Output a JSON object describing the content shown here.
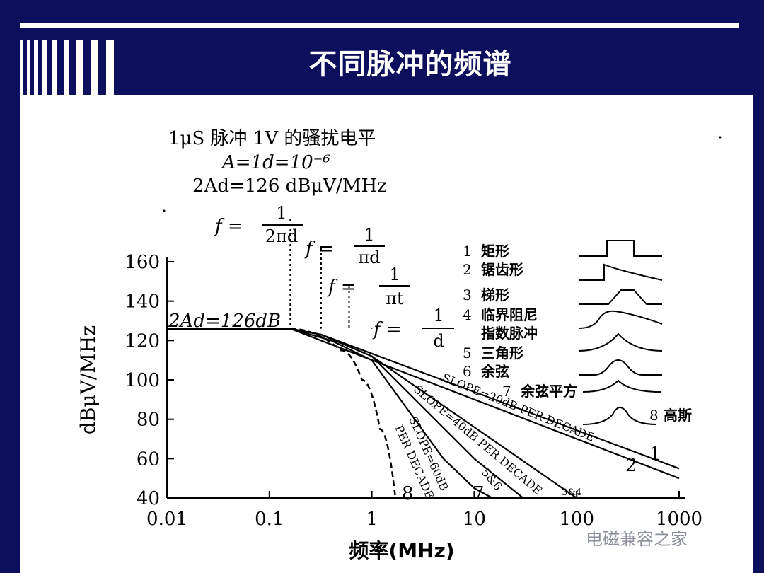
{
  "slide": {
    "title": "不同脉冲的频谱"
  },
  "figure": {
    "heading": "1μS 脉冲  1V 的骚扰电平",
    "eq1": "A=1d=10⁻⁶",
    "eq2": "2Ad=126 dBμV/MHz",
    "corner_labels": [
      {
        "lhs": "f =",
        "num": "1",
        "den": "2πd"
      },
      {
        "lhs": "f =",
        "num": "1",
        "den": "πd"
      },
      {
        "lhs": "f =",
        "num": "1",
        "den": "πt"
      },
      {
        "lhs": "f =",
        "num": "1",
        "den": "d"
      }
    ],
    "plateau_label": "2Ad=126dB",
    "slope_labels": [
      "SLOPE=20dB PER DECADE",
      "SLOPE=40dB PER DECADE",
      "SLOPE=60dB",
      "PER DECADE"
    ],
    "curve_number_labels": [
      "1",
      "2",
      "3&4",
      "5&6",
      "7",
      "8"
    ]
  },
  "legend": {
    "items": [
      {
        "num": "1",
        "label": "矩形"
      },
      {
        "num": "2",
        "label": "锯齿形"
      },
      {
        "num": "3",
        "label": "梯形"
      },
      {
        "num": "4",
        "label": "临界阻尼"
      },
      {
        "num": "",
        "label": "指数脉冲"
      },
      {
        "num": "5",
        "label": "三角形"
      },
      {
        "num": "6",
        "label": "余弦"
      },
      {
        "num": "7",
        "label": "余弦平方"
      },
      {
        "num": "8",
        "label": "高斯"
      }
    ]
  },
  "chart_data": {
    "type": "line",
    "xlabel": "频率(MHz)",
    "ylabel": "dBμV/MHz",
    "xscale": "log",
    "xlim": [
      0.01,
      1000
    ],
    "ylim": [
      40,
      160
    ],
    "xticks": [
      0.01,
      0.1,
      1,
      10,
      100,
      1000
    ],
    "xtick_labels": [
      "0.01",
      "0.1",
      "1",
      "10",
      "100",
      "1000"
    ],
    "yticks": [
      40,
      60,
      80,
      100,
      120,
      140,
      160
    ],
    "ytick_labels": [
      "40",
      "60",
      "80",
      "100",
      "120",
      "140",
      "160"
    ],
    "grid": false,
    "series": [
      {
        "name": "1",
        "x": [
          0.01,
          0.16,
          1000
        ],
        "y": [
          126,
          126,
          50
        ]
      },
      {
        "name": "2",
        "x": [
          0.01,
          0.16,
          0.32,
          1000
        ],
        "y": [
          126,
          126,
          123,
          55
        ]
      },
      {
        "name": "3&4",
        "x": [
          0.01,
          0.16,
          0.32,
          1,
          100
        ],
        "y": [
          126,
          126,
          123,
          112,
          40
        ]
      },
      {
        "name": "5&6",
        "x": [
          0.01,
          0.16,
          0.32,
          1,
          10,
          30
        ],
        "y": [
          126,
          126,
          123,
          112,
          60,
          40
        ]
      },
      {
        "name": "7",
        "x": [
          0.01,
          0.16,
          0.4,
          1,
          5,
          10,
          15
        ],
        "y": [
          126,
          126,
          120,
          110,
          60,
          45,
          40
        ]
      },
      {
        "name": "8",
        "x": [
          0.01,
          0.16,
          0.5,
          0.8,
          1.2,
          1.7
        ],
        "y": [
          126,
          126,
          115,
          100,
          75,
          40
        ]
      }
    ],
    "corner_frequencies": [
      0.16,
      0.32,
      0.6,
      1
    ]
  },
  "watermark": {
    "text": "电磁兼容之家"
  },
  "colors": {
    "background": "#0b0f5c",
    "panel": "#ffffff",
    "ink": "#000000",
    "watermark": "#8a8f9a"
  }
}
